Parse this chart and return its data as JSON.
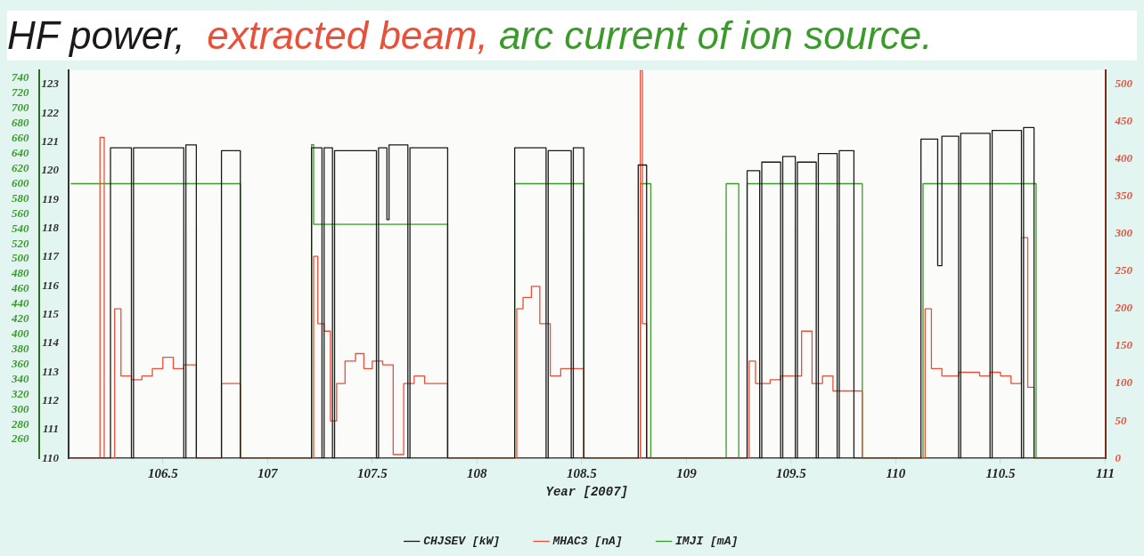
{
  "chart_data": {
    "type": "step",
    "title": "HF power,  extracted beam, arc current of ion source.",
    "xlabel": "Year [2007]",
    "xlim": [
      106.05,
      111
    ],
    "xticks": [
      106.5,
      107,
      107.5,
      108,
      108.5,
      109,
      109.5,
      110,
      110.5,
      111
    ],
    "ylim": [
      110,
      123.5
    ],
    "yticks": [
      110,
      111,
      112,
      113,
      114,
      115,
      116,
      117,
      118,
      119,
      120,
      121,
      122,
      123
    ],
    "y2lim": [
      0,
      519
    ],
    "y2ticks": [
      0,
      50,
      100,
      150,
      200,
      250,
      300,
      350,
      400,
      450,
      500
    ],
    "y3lim": [
      235,
      751
    ],
    "y3ticks": [
      260,
      280,
      300,
      320,
      340,
      360,
      380,
      400,
      420,
      440,
      460,
      480,
      500,
      520,
      540,
      560,
      580,
      600,
      620,
      640,
      660,
      680,
      700,
      720,
      740
    ],
    "legend": "bottom",
    "grid": false,
    "marker": "none",
    "line_style": "solid",
    "series": [
      {
        "name": "CHJSEV [kW]",
        "color": "#1a1a1a",
        "x": [
          106.05,
          106.25,
          106.35,
          106.36,
          106.6,
          106.61,
          106.66,
          106.78,
          106.87,
          107.21,
          107.26,
          107.27,
          107.31,
          107.32,
          107.52,
          107.53,
          107.57,
          107.58,
          107.67,
          107.68,
          107.86,
          108.18,
          108.33,
          108.34,
          108.45,
          108.46,
          108.51,
          108.77,
          108.81,
          109.29,
          109.35,
          109.36,
          109.45,
          109.46,
          109.52,
          109.53,
          109.62,
          109.63,
          109.72,
          109.73,
          109.8,
          110.12,
          110.2,
          110.22,
          110.3,
          110.31,
          110.45,
          110.46,
          110.6,
          110.61,
          110.66,
          111
        ],
        "values": [
          110,
          120.8,
          110,
          120.8,
          110,
          120.9,
          110,
          120.7,
          110,
          120.8,
          110,
          120.8,
          110,
          120.7,
          110,
          120.8,
          118.3,
          120.9,
          110,
          120.8,
          110,
          120.8,
          110,
          120.7,
          110,
          120.8,
          110,
          120.2,
          110,
          120,
          110,
          120.3,
          110,
          120.5,
          110,
          120.3,
          110,
          120.6,
          110,
          120.7,
          110,
          121.1,
          116.7,
          121.2,
          110,
          121.3,
          110,
          121.4,
          110,
          121.5,
          110,
          110
        ]
      },
      {
        "name": "MHAC3 [nA]",
        "color": "#e8503a",
        "axis": "y2",
        "x": [
          106.05,
          106.2,
          106.22,
          106.27,
          106.3,
          106.35,
          106.4,
          106.45,
          106.5,
          106.55,
          106.6,
          106.66,
          106.78,
          106.87,
          107.22,
          107.24,
          107.27,
          107.3,
          107.33,
          107.37,
          107.42,
          107.46,
          107.5,
          107.55,
          107.6,
          107.65,
          107.7,
          107.75,
          107.8,
          107.86,
          108.19,
          108.22,
          108.26,
          108.3,
          108.35,
          108.4,
          108.45,
          108.51,
          108.78,
          108.79,
          108.81,
          109.3,
          109.33,
          109.4,
          109.45,
          109.5,
          109.55,
          109.6,
          109.65,
          109.7,
          109.75,
          109.84,
          110.14,
          110.17,
          110.22,
          110.3,
          110.35,
          110.4,
          110.45,
          110.5,
          110.55,
          110.6,
          110.63,
          110.66,
          111
        ],
        "values": [
          0,
          429,
          0,
          200,
          110,
          105,
          110,
          120,
          135,
          120,
          125,
          0,
          100,
          0,
          270,
          180,
          170,
          50,
          100,
          130,
          140,
          120,
          130,
          125,
          5,
          100,
          110,
          100,
          100,
          0,
          200,
          215,
          230,
          180,
          110,
          120,
          120,
          0,
          519,
          180,
          0,
          130,
          100,
          105,
          110,
          110,
          170,
          100,
          110,
          90,
          90,
          0,
          200,
          120,
          110,
          115,
          115,
          110,
          115,
          110,
          100,
          295,
          95,
          0,
          0
        ]
      },
      {
        "name": "IMJI [mA]",
        "color": "#3a9a2a",
        "axis": "y3",
        "x": [
          106.06,
          106.87,
          107.21,
          107.22,
          107.86,
          108.18,
          108.51,
          108.78,
          108.83,
          109.19,
          109.25,
          109.29,
          109.84,
          110.13,
          110.67,
          111
        ],
        "values": [
          600,
          235,
          652,
          546,
          235,
          600,
          235,
          600,
          235,
          600,
          235,
          600,
          235,
          600,
          235,
          235
        ]
      }
    ]
  }
}
